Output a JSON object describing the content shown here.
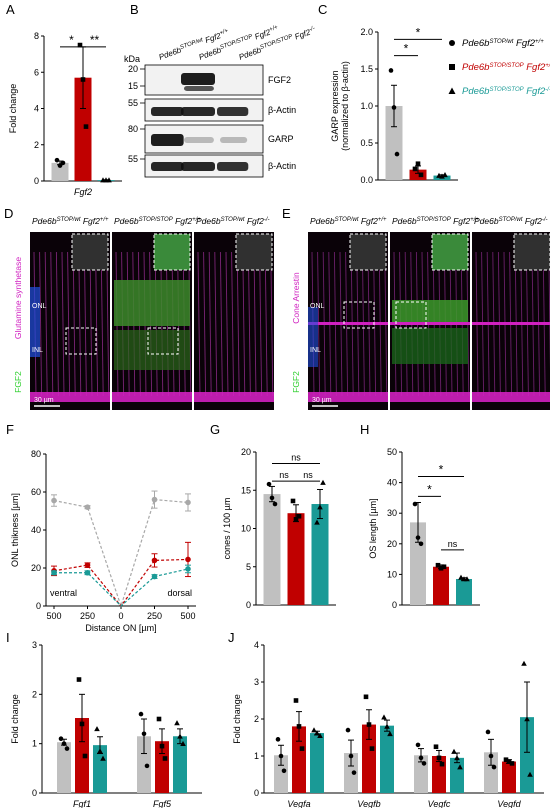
{
  "panels": {
    "A": "A",
    "B": "B",
    "C": "C",
    "D": "D",
    "E": "E",
    "F": "F",
    "G": "G",
    "H": "H",
    "I": "I",
    "J": "J"
  },
  "colors": {
    "gray": "#c0c0c0",
    "red": "#c00000",
    "teal": "#1a9a96",
    "magenta": "#d020c0",
    "green": "#30d030",
    "blue": "#2050e0"
  },
  "legend": [
    {
      "key": "wt",
      "base": "Pde6b",
      "sup1": "STOP/wt",
      "gene": " Fgf2",
      "sup2": "+/+",
      "color": "#000000",
      "marker": "circle"
    },
    {
      "key": "stop",
      "base": "Pde6b",
      "sup1": "STOP/STOP",
      "gene": " Fgf2",
      "sup2": "+/+",
      "color": "#c00000",
      "marker": "square"
    },
    {
      "key": "ko",
      "base": "Pde6b",
      "sup1": "STOP/STOP",
      "gene": " Fgf2",
      "sup2": "-/-",
      "color": "#1a9a96",
      "marker": "triangle"
    }
  ],
  "blot": {
    "kda_label": "kDa",
    "lanes": [
      {
        "base": "Pde6b",
        "sup1": "STOP/wt",
        "gene": " Fgf2",
        "sup2": "+/+"
      },
      {
        "base": "Pde6b",
        "sup1": "STOP/STOP",
        "gene": " Fgf2",
        "sup2": "+/+"
      },
      {
        "base": "Pde6b",
        "sup1": "STOP/STOP",
        "gene": " Fgf2",
        "sup2": "-/-"
      }
    ],
    "rows": [
      {
        "label": "FGF2",
        "markers": [
          "20",
          "15"
        ]
      },
      {
        "label": "β-Actin",
        "markers": [
          "55"
        ]
      },
      {
        "label": "GARP",
        "markers": [
          "80"
        ]
      },
      {
        "label": "β-Actin",
        "markers": [
          "55"
        ]
      }
    ]
  },
  "micro_D": {
    "headers": [
      {
        "base": "Pde6b",
        "sup1": "STOP/wt",
        "gene": " Fgf2",
        "sup2": "+/+"
      },
      {
        "base": "Pde6b",
        "sup1": "STOP/STOP",
        "gene": " Fgf2",
        "sup2": "+/+"
      },
      {
        "base": "Pde6b",
        "sup1": "STOP/wt",
        "gene": " Fgf2",
        "sup2": "-/-"
      }
    ],
    "stain_top": "Glutamine synthetase",
    "stain_bottom": "FGF2",
    "onl": "ONL",
    "inl": "INL",
    "scale": "30 µm"
  },
  "micro_E": {
    "headers": [
      {
        "base": "Pde6b",
        "sup1": "STOP/wt",
        "gene": " Fgf2",
        "sup2": "+/+"
      },
      {
        "base": "Pde6b",
        "sup1": "STOP/STOP",
        "gene": " Fgf2",
        "sup2": "+/+"
      },
      {
        "base": "Pde6b",
        "sup1": "STOP/wt",
        "gene": " Fgf2",
        "sup2": "-/-"
      }
    ],
    "stain_top": "Cone Arrestin",
    "stain_bottom": "FGF2",
    "onl": "ONL",
    "inl": "INL",
    "scale": "30 µm"
  },
  "chart_data": [
    {
      "id": "A",
      "type": "bar",
      "ylabel": "Fold change",
      "xlabel": "Fgf2",
      "ylim": [
        0,
        8
      ],
      "yticks": [
        0,
        2,
        4,
        6,
        8
      ],
      "bars": [
        {
          "group": "wt",
          "mean": 1.0,
          "err": 0.1,
          "points": [
            1.15,
            0.85,
            1.0
          ]
        },
        {
          "group": "stop",
          "mean": 5.7,
          "err": 1.7,
          "points": [
            7.5,
            5.6,
            3.0
          ]
        },
        {
          "group": "ko",
          "mean": 0.05,
          "err": 0.02,
          "points": [
            0.05,
            0.05,
            0.05
          ]
        }
      ],
      "significance": [
        {
          "from": 0,
          "to": 1,
          "label": "*",
          "y": 7.4
        },
        {
          "from": 1,
          "to": 2,
          "label": "**",
          "y": 7.4
        }
      ]
    },
    {
      "id": "C",
      "type": "bar",
      "ylabel": "GARP expression (normalized to β-actin)",
      "ylim": [
        0,
        2.0
      ],
      "yticks": [
        0.0,
        0.5,
        1.0,
        1.5,
        2.0
      ],
      "bars": [
        {
          "group": "wt",
          "mean": 1.0,
          "err": 0.28,
          "points": [
            1.48,
            0.98,
            0.35
          ]
        },
        {
          "group": "stop",
          "mean": 0.14,
          "err": 0.05,
          "points": [
            0.15,
            0.22,
            0.07
          ]
        },
        {
          "group": "ko",
          "mean": 0.06,
          "err": 0.01,
          "points": [
            0.06,
            0.05,
            0.07
          ]
        }
      ],
      "significance": [
        {
          "from": 0,
          "to": 2,
          "label": "*",
          "y": 1.9
        },
        {
          "from": 0,
          "to": 1,
          "label": "*",
          "y": 1.68
        }
      ]
    },
    {
      "id": "F",
      "type": "line",
      "ylabel": "ONL thikness [µm]",
      "xlabel": "Distance ON [µm]",
      "x": [
        -500,
        -250,
        0,
        250,
        500
      ],
      "xticklabels": [
        "500",
        "250",
        "0",
        "250",
        "500"
      ],
      "ylim": [
        0,
        80
      ],
      "yticks": [
        0,
        20,
        40,
        60,
        80
      ],
      "annotations": [
        "ventral",
        "dorsal"
      ],
      "series": [
        {
          "group": "wt",
          "values": [
            55.5,
            52,
            0,
            56,
            54.5
          ],
          "err": [
            3,
            0.8,
            0,
            4.5,
            4.5
          ]
        },
        {
          "group": "stop",
          "values": [
            18.5,
            21.5,
            0,
            24,
            24.5
          ],
          "err": [
            2.5,
            1.2,
            0,
            3.5,
            9
          ]
        },
        {
          "group": "ko",
          "values": [
            17.5,
            17.5,
            0,
            15.5,
            19.5
          ],
          "err": [
            1,
            1,
            0,
            1,
            2
          ]
        }
      ]
    },
    {
      "id": "G",
      "type": "bar",
      "ylabel": "cones / 100 µm",
      "ylim": [
        0,
        20
      ],
      "yticks": [
        0,
        5,
        10,
        15,
        20
      ],
      "bars": [
        {
          "group": "wt",
          "mean": 14.5,
          "err": 1.0,
          "points": [
            15.8,
            14.0,
            13.2
          ]
        },
        {
          "group": "stop",
          "mean": 12.0,
          "err": 1.1,
          "points": [
            13.6,
            11.2,
            11.6
          ]
        },
        {
          "group": "ko",
          "mean": 13.2,
          "err": 1.9,
          "points": [
            10.8,
            12.8,
            16.0
          ]
        }
      ],
      "significance": [
        {
          "from": 0,
          "to": 2,
          "label": "ns",
          "y": 18.5
        },
        {
          "from": 0,
          "to": 1,
          "label": "ns",
          "y": 16.2
        },
        {
          "from": 1,
          "to": 2,
          "label": "ns",
          "y": 16.2
        }
      ]
    },
    {
      "id": "H",
      "type": "bar",
      "ylabel": "OS length [µm]",
      "ylim": [
        0,
        50
      ],
      "yticks": [
        0,
        10,
        20,
        30,
        40,
        50
      ],
      "bars": [
        {
          "group": "wt",
          "mean": 27,
          "err": 6.5,
          "points": [
            33,
            22,
            20
          ]
        },
        {
          "group": "stop",
          "mean": 12.5,
          "err": 0.6,
          "points": [
            13,
            12,
            12.5
          ]
        },
        {
          "group": "ko",
          "mean": 8.5,
          "err": 0.4,
          "points": [
            9,
            8.5,
            8.5
          ]
        }
      ],
      "significance": [
        {
          "from": 0,
          "to": 2,
          "label": "*",
          "y": 42
        },
        {
          "from": 0,
          "to": 1,
          "label": "*",
          "y": 35.5
        },
        {
          "from": 1,
          "to": 2,
          "label": "ns",
          "y": 18
        }
      ]
    },
    {
      "id": "I",
      "type": "bar",
      "ylabel": "Fold change",
      "ylim": [
        0,
        3
      ],
      "yticks": [
        0,
        1,
        2,
        3
      ],
      "genes": [
        "Fgf1",
        "Fgf5"
      ],
      "groups": [
        [
          {
            "group": "wt",
            "mean": 1.03,
            "err": 0.06,
            "points": [
              1.1,
              1.0,
              0.9
            ]
          },
          {
            "group": "stop",
            "mean": 1.52,
            "err": 0.48,
            "points": [
              2.3,
              1.4,
              0.75
            ]
          },
          {
            "group": "ko",
            "mean": 0.97,
            "err": 0.17,
            "points": [
              1.3,
              0.85,
              0.7
            ]
          }
        ],
        [
          {
            "group": "wt",
            "mean": 1.15,
            "err": 0.35,
            "points": [
              1.6,
              1.2,
              0.55
            ]
          },
          {
            "group": "stop",
            "mean": 1.05,
            "err": 0.25,
            "points": [
              1.5,
              0.95,
              0.7
            ]
          },
          {
            "group": "ko",
            "mean": 1.15,
            "err": 0.15,
            "points": [
              1.42,
              1.15,
              1.0
            ]
          }
        ]
      ]
    },
    {
      "id": "J",
      "type": "bar",
      "ylabel": "Fold change",
      "ylim": [
        0,
        4
      ],
      "yticks": [
        0,
        1,
        2,
        3,
        4
      ],
      "genes": [
        "Vegfa",
        "Vegfb",
        "Vegfc",
        "Vegfd"
      ],
      "groups": [
        [
          {
            "group": "wt",
            "mean": 1.02,
            "err": 0.27,
            "points": [
              1.45,
              1.0,
              0.6
            ]
          },
          {
            "group": "stop",
            "mean": 1.8,
            "err": 0.4,
            "points": [
              2.5,
              1.8,
              1.2
            ]
          },
          {
            "group": "ko",
            "mean": 1.62,
            "err": 0.05,
            "points": [
              1.7,
              1.62,
              1.55
            ]
          }
        ],
        [
          {
            "group": "wt",
            "mean": 1.08,
            "err": 0.35,
            "points": [
              1.7,
              1.0,
              0.55
            ]
          },
          {
            "group": "stop",
            "mean": 1.85,
            "err": 0.4,
            "points": [
              2.6,
              1.85,
              1.2
            ]
          },
          {
            "group": "ko",
            "mean": 1.82,
            "err": 0.15,
            "points": [
              2.05,
              1.8,
              1.6
            ]
          }
        ],
        [
          {
            "group": "wt",
            "mean": 1.02,
            "err": 0.18,
            "points": [
              1.3,
              0.95,
              0.8
            ]
          },
          {
            "group": "stop",
            "mean": 1.0,
            "err": 0.15,
            "points": [
              1.25,
              0.95,
              0.78
            ]
          },
          {
            "group": "ko",
            "mean": 0.95,
            "err": 0.13,
            "points": [
              1.12,
              0.95,
              0.7
            ]
          }
        ],
        [
          {
            "group": "wt",
            "mean": 1.1,
            "err": 0.35,
            "points": [
              1.65,
              1.0,
              0.7
            ]
          },
          {
            "group": "stop",
            "mean": 0.85,
            "err": 0.05,
            "points": [
              0.9,
              0.85,
              0.8
            ]
          },
          {
            "group": "ko",
            "mean": 2.05,
            "err": 0.95,
            "points": [
              3.5,
              2.0,
              0.5
            ]
          }
        ]
      ]
    }
  ]
}
